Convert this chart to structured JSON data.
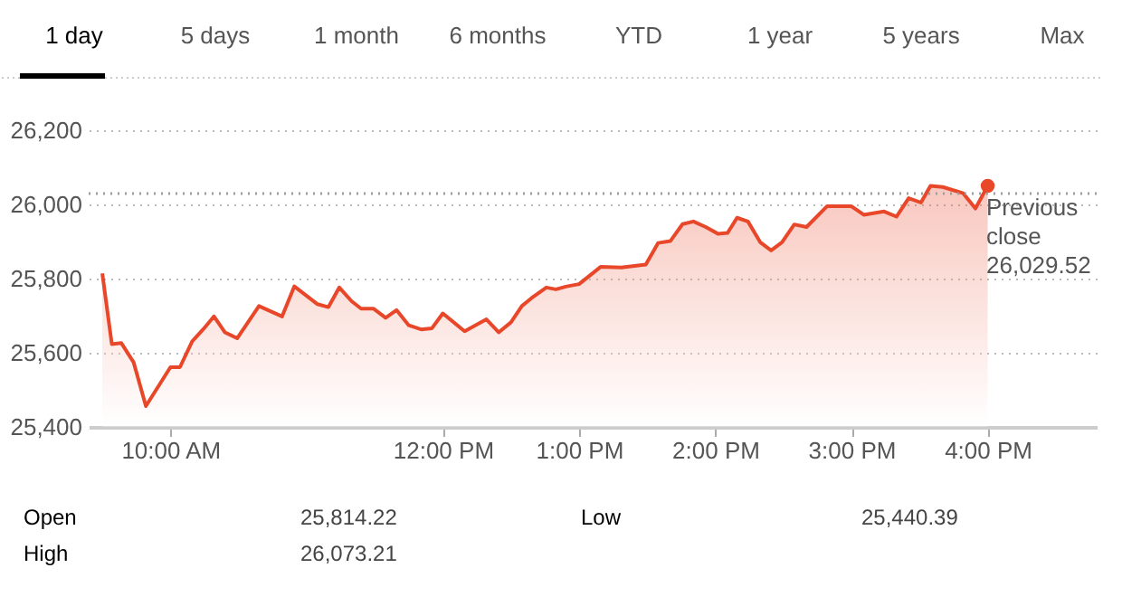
{
  "chart_data": {
    "type": "area",
    "annotations": [
      "1 day",
      "5 days",
      "1 month",
      "6 months",
      "YTD",
      "1 year",
      "5 years",
      "Max",
      "Open",
      "25,814.22",
      "Low",
      "25,440.39",
      "High",
      "26,073.21"
    ],
    "series": [
      {
        "color": "#e8472a",
        "x": [
          9.5,
          9.57,
          9.64,
          9.73,
          9.82,
          10.0,
          10.07,
          10.16,
          10.24,
          10.32,
          10.4,
          10.49,
          10.65,
          10.82,
          10.91,
          11.08,
          11.16,
          11.24,
          11.33,
          11.4,
          11.49,
          11.58,
          11.66,
          11.75,
          11.84,
          11.92,
          12.0,
          12.16,
          12.32,
          12.41,
          12.5,
          12.58,
          12.65,
          12.76,
          12.83,
          12.91,
          13.0,
          13.16,
          13.31,
          13.49,
          13.58,
          13.67,
          13.76,
          13.84,
          13.93,
          14.02,
          14.09,
          14.16,
          14.24,
          14.33,
          14.41,
          14.49,
          14.58,
          14.67,
          14.82,
          15.0,
          15.09,
          15.24,
          15.33,
          15.42,
          15.51,
          15.58,
          15.67,
          15.82,
          15.91,
          16.0
        ],
        "values": [
          25814,
          25623,
          25626,
          25574,
          25456,
          25561,
          25561,
          25631,
          25663,
          25698,
          25655,
          25639,
          25726,
          25698,
          25779,
          25731,
          25723,
          25776,
          25739,
          25719,
          25719,
          25694,
          25715,
          25674,
          25663,
          25666,
          25706,
          25658,
          25690,
          25655,
          25682,
          25726,
          25747,
          25776,
          25771,
          25779,
          25785,
          25832,
          25830,
          25838,
          25896,
          25901,
          25947,
          25954,
          25939,
          25921,
          25923,
          25964,
          25954,
          25898,
          25876,
          25898,
          25946,
          25939,
          25995,
          25995,
          25972,
          25981,
          25967,
          26017,
          26005,
          26050,
          26047,
          26030,
          25989,
          26050
        ]
      },
      {
        "type": "scatter",
        "color": "#e8472a",
        "x": [
          16.0
        ],
        "values": [
          26050
        ]
      }
    ],
    "xlim": [
      9.4,
      16.8
    ],
    "ylim": [
      25400,
      26200
    ],
    "xticks": [
      {
        "value": 10,
        "label": "10:00 AM"
      },
      {
        "value": 12,
        "label": "12:00 PM"
      },
      {
        "value": 13,
        "label": "1:00 PM"
      },
      {
        "value": 14,
        "label": "2:00 PM"
      },
      {
        "value": 15,
        "label": "3:00 PM"
      },
      {
        "value": 16,
        "label": "4:00 PM"
      }
    ],
    "yticks": [
      {
        "value": 25400,
        "label": "25,400"
      },
      {
        "value": 25600,
        "label": "25,600"
      },
      {
        "value": 25800,
        "label": "25,800"
      },
      {
        "value": 26000,
        "label": "26,000"
      },
      {
        "value": 26200,
        "label": "26,200"
      }
    ],
    "ref_lines": [
      {
        "axis": "y",
        "value": 26029.52,
        "label": "Previous close 26,029.52",
        "color": "#9e9e9e",
        "line_style": "dotted"
      }
    ],
    "grid": "y"
  }
}
